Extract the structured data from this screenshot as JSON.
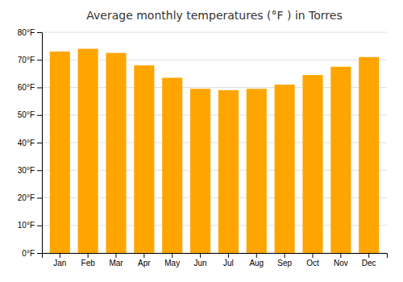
{
  "chart_data": {
    "type": "bar",
    "title": "Average monthly temperatures (°F ) in Torres",
    "categories": [
      "Jan",
      "Feb",
      "Mar",
      "Apr",
      "May",
      "Jun",
      "Jul",
      "Aug",
      "Sep",
      "Oct",
      "Nov",
      "Dec"
    ],
    "values": [
      73.0,
      74.0,
      72.5,
      68.0,
      63.5,
      59.5,
      59.0,
      59.5,
      61.0,
      64.5,
      67.5,
      71.0
    ],
    "color": "#FFA500",
    "ylim": [
      0,
      80
    ],
    "yticks": [
      {
        "value": 0,
        "label": "0°F"
      },
      {
        "value": 10,
        "label": "10°F"
      },
      {
        "value": 20,
        "label": "20°F"
      },
      {
        "value": 30,
        "label": "30°F"
      },
      {
        "value": 40,
        "label": "40°F"
      },
      {
        "value": 50,
        "label": "50°F"
      },
      {
        "value": 60,
        "label": "60°F"
      },
      {
        "value": 70,
        "label": "70°F"
      },
      {
        "value": 80,
        "label": "80°F"
      }
    ],
    "grid": true
  }
}
